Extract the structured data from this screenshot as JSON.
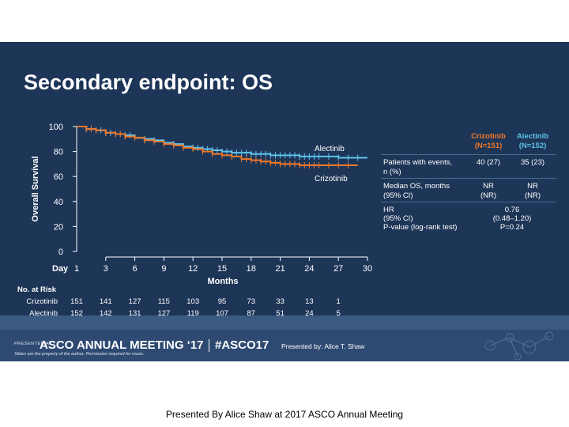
{
  "slide": {
    "title": "Secondary endpoint: OS"
  },
  "chart_data": {
    "type": "line",
    "title": "Secondary endpoint: OS",
    "xlabel": "Months",
    "ylabel": "Overall Survival",
    "x_day_label": "Day",
    "xlim": [
      0,
      30
    ],
    "ylim": [
      0,
      100
    ],
    "xticks": [
      1,
      3,
      6,
      9,
      12,
      15,
      18,
      21,
      24,
      27,
      30
    ],
    "yticks": [
      0,
      20,
      40,
      60,
      80,
      100
    ],
    "series": [
      {
        "name": "Alectinib",
        "color": "#5fc3ea",
        "x": [
          0,
          1,
          2,
          3,
          4,
          5,
          6,
          7,
          8,
          9,
          10,
          11,
          12,
          13,
          14,
          15,
          16,
          17,
          18,
          19,
          20,
          21,
          22,
          23,
          24,
          25,
          26,
          27,
          28,
          29
        ],
        "y": [
          100,
          98,
          97,
          95,
          94,
          93,
          91,
          90,
          89,
          87,
          86,
          84,
          83,
          82,
          81,
          80,
          79,
          79,
          78,
          78,
          77,
          77,
          77,
          76,
          76,
          76,
          76,
          75,
          75,
          75
        ],
        "censor_x": [
          1,
          1.5,
          2,
          2.5,
          3,
          3.5,
          4,
          4.5,
          5,
          5.5,
          7,
          8,
          9,
          10,
          11,
          12,
          12.5,
          13,
          13.5,
          14,
          14.5,
          15,
          15.5,
          16,
          16.5,
          17,
          17.5,
          18,
          18.5,
          19,
          19.5,
          20,
          20.5,
          21,
          21.5,
          22,
          22.5,
          23,
          23.5,
          24,
          24.5,
          25,
          26,
          27,
          28,
          29
        ]
      },
      {
        "name": "Crizotinib",
        "color": "#f0782a",
        "x": [
          0,
          1,
          2,
          3,
          4,
          5,
          6,
          7,
          8,
          9,
          10,
          11,
          12,
          13,
          14,
          15,
          16,
          17,
          18,
          19,
          20,
          21,
          22,
          23,
          24,
          25,
          26,
          27,
          28
        ],
        "y": [
          100,
          98,
          97,
          95,
          94,
          92,
          91,
          89,
          88,
          86,
          85,
          83,
          82,
          80,
          78,
          77,
          76,
          74,
          73,
          72,
          71,
          70,
          70,
          69,
          69,
          69,
          69,
          69,
          69
        ],
        "censor_x": [
          1,
          1.5,
          2,
          3,
          4,
          4.5,
          5,
          6,
          7,
          8,
          9,
          10,
          11,
          12,
          13,
          14,
          15,
          16,
          17,
          17.5,
          18,
          18.5,
          19,
          19.5,
          20,
          20.5,
          21,
          21.5,
          22,
          22.5,
          23,
          23.5,
          24,
          24.5,
          25,
          26,
          27,
          28
        ]
      }
    ],
    "curve_labels": [
      "Alectinib",
      "Crizotinib"
    ],
    "risk_table": {
      "title": "No. at Risk",
      "rows": [
        {
          "name": "Crizotinib",
          "values": [
            "151",
            "141",
            "127",
            "115",
            "103",
            "95",
            "73",
            "33",
            "13",
            "1"
          ]
        },
        {
          "name": "Alectinib",
          "values": [
            "152",
            "142",
            "131",
            "127",
            "119",
            "107",
            "87",
            "51",
            "24",
            "5"
          ]
        }
      ]
    }
  },
  "stats_table": {
    "col1_name": "Crizotinib",
    "col1_n": "(N=151)",
    "col2_name": "Alectinib",
    "col2_n": "(N=152)",
    "events_label_1": "Patients with events,",
    "events_label_2": "n (%)",
    "events_crizotinib": "40 (27)",
    "events_alectinib": "35 (23)",
    "median_label_1": "Median OS, months",
    "median_label_2": "(95% CI)",
    "median_crizotinib": "NR",
    "median_crizotinib_ci": "(NR)",
    "median_alectinib": "NR",
    "median_alectinib_ci": "(NR)",
    "hr_label_1": "HR",
    "hr_label_2": "(95% CI)",
    "hr_label_3": "P-value (log-rank test)",
    "hr_value": "0.76",
    "hr_ci": "(0.48–1.20)",
    "p_value": "P=0.24"
  },
  "footer": {
    "presented_at": "PRESENTED AT:",
    "meeting": "ASCO ANNUAL MEETING ‘17",
    "hashtag": "#ASCO17",
    "presented_by": "Presented by: Alice T. Shaw",
    "disclaimer": "Slides are the property of the author. Permission required for reuse."
  },
  "caption": "Presented By Alice Shaw at 2017 ASCO Annual Meeting",
  "colors": {
    "background": "#1d3557",
    "alectinib": "#5fc3ea",
    "crizotinib": "#f0782a"
  }
}
